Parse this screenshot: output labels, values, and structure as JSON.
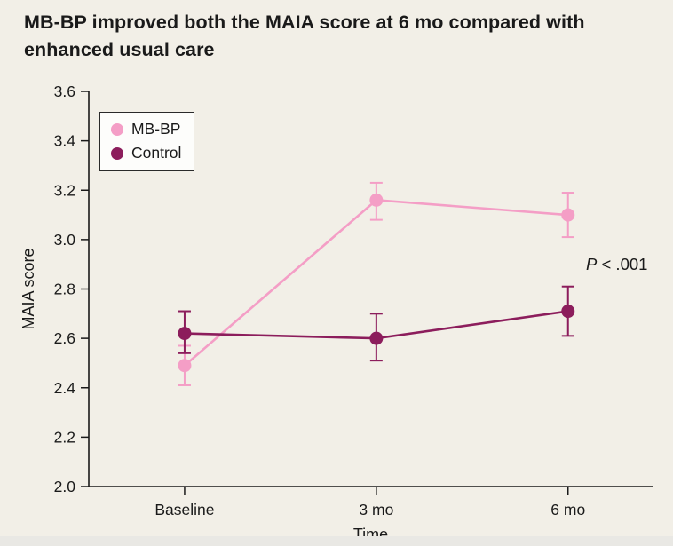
{
  "title": "MB-BP improved both the MAIA score at 6 mo compared with enhanced usual care",
  "colors": {
    "background": "#F2EFE7",
    "axis": "#1A1A1A",
    "text": "#1A1A1A",
    "legend_background": "#FDFDFB",
    "mbbp_pink": "#F49EC6",
    "control_maroon": "#8C1D5C"
  },
  "annotation_parts": [
    "P",
    " < .001"
  ],
  "chart_data": {
    "type": "line",
    "title": "MB-BP improved both the MAIA score at 6 mo compared with enhanced usual care",
    "categories": [
      "Baseline",
      "3 mo",
      "6 mo"
    ],
    "xlabel": "Time",
    "ylabel": "MAIA score",
    "ylim": [
      2.0,
      3.6
    ],
    "ytick_step": 0.2,
    "yticks": [
      2.0,
      2.2,
      2.4,
      2.6,
      2.8,
      3.0,
      3.2,
      3.4,
      3.6
    ],
    "grid": false,
    "legend_position": "top-left inside plot",
    "annotation": "P < .001",
    "error_bars": true,
    "series": [
      {
        "name": "MB-BP",
        "color": "#F49EC6",
        "values": [
          2.49,
          3.16,
          3.1
        ],
        "ci_low": [
          2.41,
          3.08,
          3.01
        ],
        "ci_high": [
          2.57,
          3.23,
          3.19
        ]
      },
      {
        "name": "Control",
        "color": "#8C1D5C",
        "values": [
          2.62,
          2.6,
          2.71
        ],
        "ci_low": [
          2.54,
          2.51,
          2.61
        ],
        "ci_high": [
          2.71,
          2.7,
          2.81
        ]
      }
    ]
  }
}
